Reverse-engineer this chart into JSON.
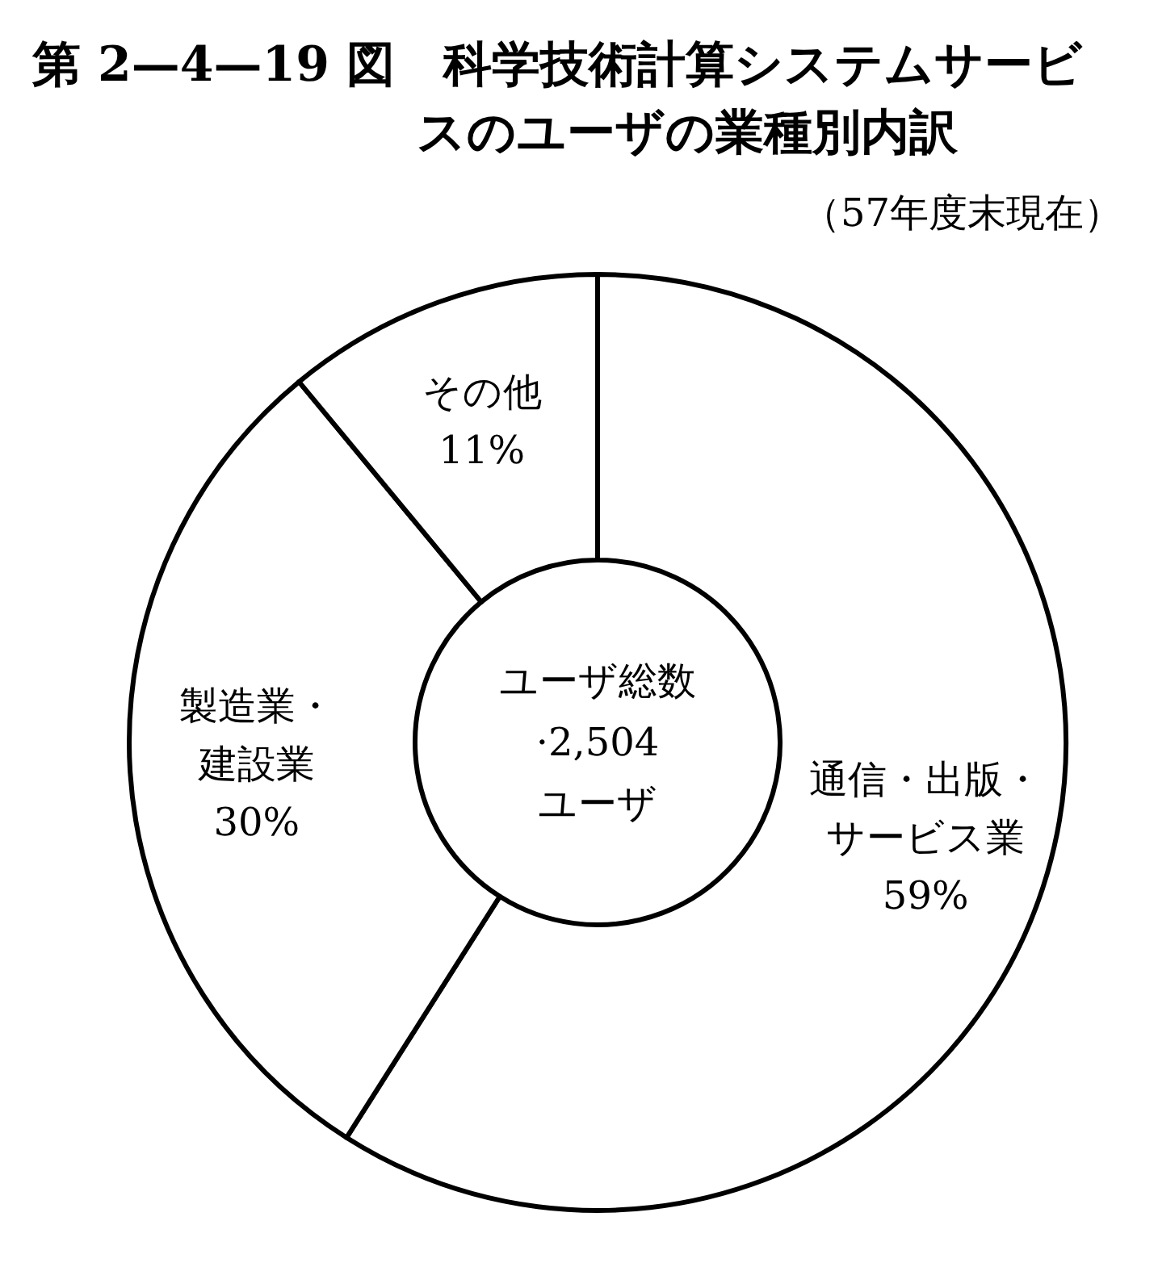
{
  "chart_data": {
    "type": "donut",
    "title": "第 2—4—19 図　科学技術計算システムサービスのユーザの業種別内訳",
    "subtitle": "（57年度末現在）",
    "categories": [
      "通信・出版・サービス業",
      "製造業・建設業",
      "その他"
    ],
    "values": [
      59,
      30,
      11
    ],
    "value_labels": [
      "59%",
      "30%",
      "11%"
    ],
    "colors": [
      "#ffffff",
      "#ffffff",
      "#ffffff"
    ],
    "annotations": [
      "ユーザ総数\n·2,504\nユーザ"
    ]
  }
}
